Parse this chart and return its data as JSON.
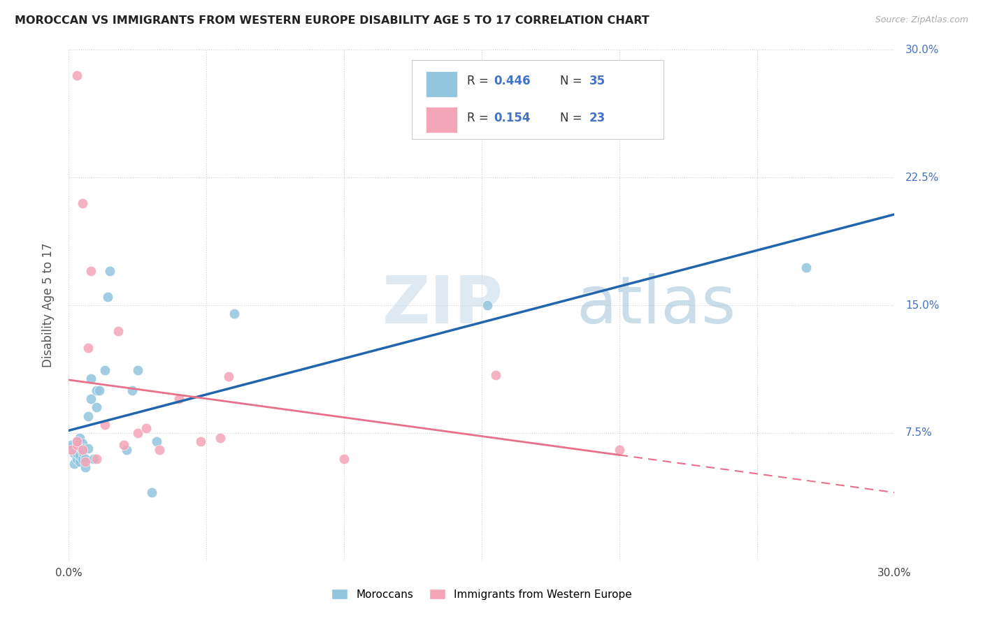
{
  "title": "MOROCCAN VS IMMIGRANTS FROM WESTERN EUROPE DISABILITY AGE 5 TO 17 CORRELATION CHART",
  "source": "Source: ZipAtlas.com",
  "ylabel": "Disability Age 5 to 17",
  "xlim": [
    0.0,
    0.3
  ],
  "ylim": [
    0.0,
    0.3
  ],
  "legend_r1": "0.446",
  "legend_n1": "35",
  "legend_r2": "0.154",
  "legend_n2": "23",
  "legend_label1": "Moroccans",
  "legend_label2": "Immigrants from Western Europe",
  "blue_color": "#92c5de",
  "pink_color": "#f4a5b8",
  "blue_line_color": "#2166ac",
  "pink_line_color": "#e8708a",
  "background_color": "#ffffff",
  "grid_color": "#d0d0d0",
  "blue_x": [
    0.001,
    0.001,
    0.002,
    0.002,
    0.003,
    0.003,
    0.003,
    0.004,
    0.004,
    0.004,
    0.005,
    0.005,
    0.005,
    0.006,
    0.006,
    0.007,
    0.008,
    0.008,
    0.009,
    0.01,
    0.01,
    0.011,
    0.013,
    0.014,
    0.015,
    0.021,
    0.023,
    0.025,
    0.03,
    0.032,
    0.06,
    0.152,
    0.268,
    0.005,
    0.007
  ],
  "blue_y": [
    0.066,
    0.068,
    0.057,
    0.063,
    0.06,
    0.063,
    0.07,
    0.058,
    0.062,
    0.072,
    0.06,
    0.064,
    0.069,
    0.055,
    0.06,
    0.085,
    0.095,
    0.107,
    0.06,
    0.09,
    0.1,
    0.1,
    0.112,
    0.155,
    0.17,
    0.065,
    0.1,
    0.112,
    0.04,
    0.07,
    0.145,
    0.15,
    0.172,
    0.066,
    0.066
  ],
  "pink_x": [
    0.001,
    0.003,
    0.003,
    0.005,
    0.006,
    0.007,
    0.008,
    0.01,
    0.013,
    0.018,
    0.02,
    0.025,
    0.028,
    0.033,
    0.04,
    0.048,
    0.055,
    0.058,
    0.1,
    0.155,
    0.2,
    0.003,
    0.005
  ],
  "pink_y": [
    0.065,
    0.068,
    0.07,
    0.065,
    0.058,
    0.125,
    0.17,
    0.06,
    0.08,
    0.135,
    0.068,
    0.075,
    0.078,
    0.065,
    0.095,
    0.07,
    0.072,
    0.108,
    0.06,
    0.109,
    0.065,
    0.285,
    0.21
  ]
}
